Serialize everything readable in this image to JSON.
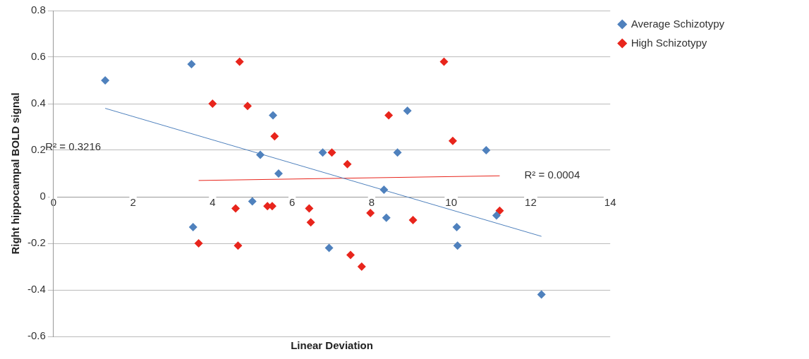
{
  "chart_data": {
    "type": "scatter",
    "xlabel": "Linear Deviation",
    "ylabel": "Right hippocampal BOLD signal",
    "xlim": [
      0,
      14
    ],
    "xticks": [
      0,
      2,
      4,
      6,
      8,
      10,
      12,
      14
    ],
    "ylim": [
      -0.6,
      0.8
    ],
    "yticks": [
      -0.6,
      -0.4,
      -0.2,
      0,
      0.2,
      0.4,
      0.6,
      0.8
    ],
    "grid": "y",
    "legend": "right",
    "marker": "diamond",
    "series": [
      {
        "name": "Average Schizotypy",
        "color": "#4f81bd",
        "x": [
          1.3,
          3.47,
          3.51,
          5.52,
          5.2,
          5.0,
          5.66,
          6.77,
          6.93,
          8.31,
          8.37,
          8.65,
          8.9,
          10.14,
          10.16,
          10.88,
          11.14,
          12.27
        ],
        "values": [
          0.5,
          0.57,
          -0.13,
          0.35,
          0.18,
          -0.02,
          0.1,
          0.19,
          -0.22,
          0.03,
          -0.09,
          0.19,
          0.37,
          -0.13,
          -0.21,
          0.2,
          -0.08,
          -0.42
        ]
      },
      {
        "name": "High Schizotypy",
        "color": "#e8251c",
        "x": [
          4.68,
          4.0,
          4.88,
          5.56,
          3.65,
          4.58,
          4.64,
          5.38,
          5.5,
          6.43,
          6.47,
          7.0,
          7.39,
          7.47,
          7.75,
          7.97,
          8.43,
          9.04,
          9.82,
          10.04,
          11.22
        ],
        "values": [
          0.58,
          0.4,
          0.39,
          0.26,
          -0.2,
          -0.05,
          -0.21,
          -0.04,
          -0.04,
          -0.05,
          -0.11,
          0.19,
          0.14,
          -0.25,
          -0.3,
          -0.07,
          0.35,
          -0.1,
          0.58,
          0.24,
          -0.06
        ]
      },
      {
        "type": "line",
        "color": "#4f81bd",
        "marker": "none",
        "line_style": "solid",
        "x": [
          1.3,
          12.27
        ],
        "values": [
          0.38,
          -0.17
        ]
      },
      {
        "type": "line",
        "color": "#e8251c",
        "marker": "none",
        "line_style": "solid",
        "x": [
          3.65,
          11.22
        ],
        "values": [
          0.07,
          0.09
        ]
      }
    ],
    "annotations": [
      "R² = 0.3216",
      "R² = 0.0004"
    ]
  }
}
